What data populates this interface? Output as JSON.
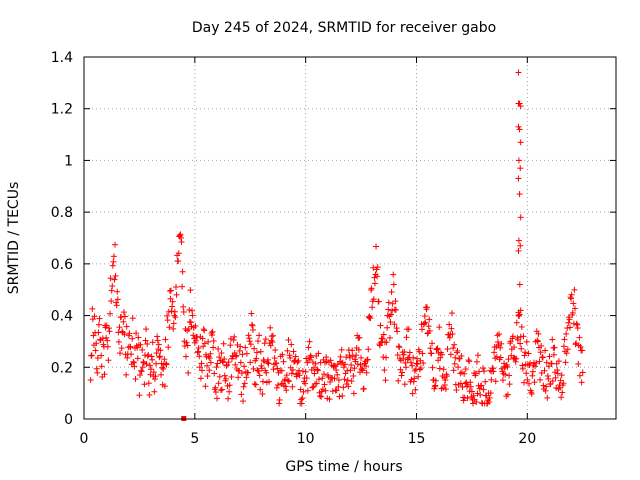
{
  "chart_data": {
    "type": "scatter",
    "title": "Day 245 of 2024, SRMTID for receiver gabo",
    "xlabel": "GPS time / hours",
    "ylabel": "SRMTID / TECUs",
    "xlim": [
      0,
      24
    ],
    "ylim": [
      0,
      1.4
    ],
    "xticks": [
      0,
      5,
      10,
      15,
      20
    ],
    "xtick_labels": [
      "0",
      "5",
      "10",
      "15",
      "20"
    ],
    "yticks": [
      0,
      0.2,
      0.4,
      0.6,
      0.8,
      1.0,
      1.2,
      1.4
    ],
    "ytick_labels": [
      "0",
      "0.2",
      "0.4",
      "0.6",
      "0.8",
      "1",
      "1.2",
      "1.4"
    ],
    "grid": true,
    "marker": "+",
    "series": [
      {
        "name": "SRMTID",
        "color": "#ff0000",
        "x": [
          0.0,
          0.1,
          0.2,
          0.3,
          0.4,
          0.5,
          0.6,
          0.7,
          0.8,
          0.9,
          1.0,
          1.1,
          1.2,
          1.3,
          1.4,
          1.5,
          1.6,
          1.7,
          1.8,
          1.9,
          2.0,
          2.1,
          2.2,
          2.3,
          2.4,
          2.5,
          2.6,
          2.7,
          2.8,
          2.9,
          3.0,
          3.1,
          3.2,
          3.3,
          3.4,
          3.5,
          3.6,
          3.7,
          3.8,
          3.9,
          4.0,
          4.1,
          4.2,
          4.3,
          4.4,
          4.5,
          4.6,
          4.7,
          4.8,
          4.9,
          5.0,
          5.1,
          5.2,
          5.3,
          5.4,
          5.5,
          5.6,
          5.7,
          5.8,
          5.9,
          6.0,
          6.1,
          6.2,
          6.3,
          6.4,
          6.5,
          6.6,
          6.7,
          6.8,
          6.9,
          7.0,
          7.1,
          7.2,
          7.3,
          7.4,
          7.5,
          7.6,
          7.7,
          7.8,
          7.9,
          8.0,
          8.1,
          8.2,
          8.3,
          8.4,
          8.5,
          8.6,
          8.7,
          8.8,
          8.9,
          9.0,
          9.1,
          9.2,
          9.3,
          9.4,
          9.5,
          9.6,
          9.7,
          9.8,
          9.9,
          10.0,
          10.1,
          10.2,
          10.3,
          10.4,
          10.5,
          10.6,
          10.7,
          10.8,
          10.9,
          11.0,
          11.1,
          11.2,
          11.3,
          11.4,
          11.5,
          11.6,
          11.7,
          11.8,
          11.9,
          12.0,
          12.1,
          12.2,
          12.3,
          12.4,
          12.5,
          12.6,
          12.7,
          12.8,
          12.9,
          13.0,
          13.1,
          13.2,
          13.3,
          13.4,
          13.5,
          13.6,
          13.7,
          13.8,
          13.9,
          14.0,
          14.1,
          14.2,
          14.3,
          14.4,
          14.5,
          14.6,
          14.7,
          14.8,
          14.9,
          15.0,
          15.1,
          15.2,
          15.3,
          15.4,
          15.5,
          15.6,
          15.7,
          15.8,
          15.9,
          16.0,
          16.1,
          16.2,
          16.3,
          16.4,
          16.5,
          16.6,
          16.7,
          16.8,
          16.9,
          17.0,
          17.1,
          17.2,
          17.3,
          17.4,
          17.5,
          17.6,
          17.7,
          17.8,
          17.9,
          18.0,
          18.1,
          18.2,
          18.3,
          18.4,
          18.5,
          18.6,
          18.7,
          18.8,
          18.9,
          19.0,
          19.1,
          19.2,
          19.3,
          19.4,
          19.5,
          19.6,
          19.7,
          19.8,
          19.9,
          20.0,
          20.1,
          20.2,
          20.3,
          20.4,
          20.5,
          20.6,
          20.7,
          20.8,
          20.9,
          21.0,
          21.1,
          21.2,
          21.3,
          21.4,
          21.5,
          21.6,
          21.7,
          21.8,
          21.9,
          22.0,
          22.1,
          22.2,
          22.3,
          22.4,
          22.5,
          22.6,
          22.7,
          22.8,
          0.2,
          0.45,
          0.3,
          0.15,
          0.35,
          0.25,
          0.2,
          0.4,
          0.3,
          0.5,
          0.55,
          0.6,
          0.45,
          0.35,
          0.3,
          0.4,
          0.25,
          0.35,
          0.2,
          0.3,
          0.22,
          0.28,
          0.18,
          0.25,
          0.15,
          0.3,
          0.2,
          0.12,
          0.22,
          0.18,
          0.25,
          0.3,
          0.2,
          0.15,
          0.28,
          0.35,
          0.5,
          0.45,
          0.4,
          0.55,
          0.62,
          0.65,
          0.42,
          0.3,
          0.25,
          0.5,
          0.35,
          0.3,
          0.28,
          0.25,
          0.22,
          0.3,
          0.18,
          0.25,
          0.28,
          0.3,
          0.2,
          0.15,
          0.22,
          0.18,
          0.25,
          0.2,
          0.15,
          0.22,
          0.28,
          0.3,
          0.25,
          0.2,
          0.18,
          0.15,
          0.22,
          0.25,
          0.3,
          0.35,
          0.2,
          0.18,
          0.25,
          0.15,
          0.2,
          0.22,
          0.18,
          0.28,
          0.3,
          0.2,
          0.15,
          0.12,
          0.18,
          0.2,
          0.15,
          0.22,
          0.25,
          0.2,
          0.15,
          0.18,
          0.12,
          0.1,
          0.15,
          0.2,
          0.18,
          0.22,
          0.15,
          0.12,
          0.2,
          0.18,
          0.15,
          0.22,
          0.18,
          0.12,
          0.15,
          0.2,
          0.18,
          0.1,
          0.15,
          0.2,
          0.12,
          0.18,
          0.22,
          0.15,
          0.2,
          0.18,
          0.25,
          0.3,
          0.2,
          0.18,
          0.22,
          0.3,
          0.45,
          0.5,
          0.55,
          0.6,
          0.4,
          0.3,
          0.25,
          0.2,
          0.35,
          0.4,
          0.5,
          0.45,
          0.3,
          0.2,
          0.15,
          0.25,
          0.2,
          0.3,
          0.25,
          0.18,
          0.2,
          0.15,
          0.22,
          0.28,
          0.3,
          0.35,
          0.4,
          0.3,
          0.22,
          0.18,
          0.25,
          0.3,
          0.2,
          0.15,
          0.18,
          0.22,
          0.3,
          0.35,
          0.25,
          0.2,
          0.15,
          0.18,
          0.12,
          0.1,
          0.15,
          0.18,
          0.12,
          0.1,
          0.14,
          0.18,
          0.15,
          0.12,
          0.1,
          0.08,
          0.12,
          0.15,
          0.2,
          0.22,
          0.25,
          0.3,
          0.2,
          0.18,
          0.15,
          0.2,
          0.25,
          0.3,
          0.28,
          0.35,
          0.3,
          0.25,
          0.2,
          0.22,
          0.18,
          0.15,
          0.2,
          0.25,
          0.3,
          0.22,
          0.18,
          0.2,
          0.15,
          0.18,
          0.22,
          0.25,
          0.2,
          0.18,
          0.15,
          0.2,
          0.25,
          0.3,
          0.35,
          0.5,
          0.45,
          0.3,
          0.25,
          0.2,
          0.18
        ],
        "y": null
      },
      {
        "name": "SRMTID",
        "color": "#ff0000",
        "x": [
          19.6,
          19.6,
          19.65,
          19.7,
          19.6,
          19.65,
          19.7,
          19.62,
          19.68,
          19.6,
          19.65,
          19.7,
          19.62,
          19.68,
          19.6,
          19.66,
          19.7,
          19.6
        ],
        "y": [
          1.34,
          1.22,
          1.22,
          1.21,
          1.13,
          1.12,
          1.07,
          1.0,
          0.97,
          0.93,
          0.87,
          0.78,
          0.69,
          0.67,
          0.65,
          0.52,
          0.42,
          0.4
        ]
      },
      {
        "name": "SRMTID",
        "color": "#ff0000",
        "x": [
          4.5
        ],
        "y": [
          0.0
        ],
        "marker": "square"
      }
    ]
  }
}
